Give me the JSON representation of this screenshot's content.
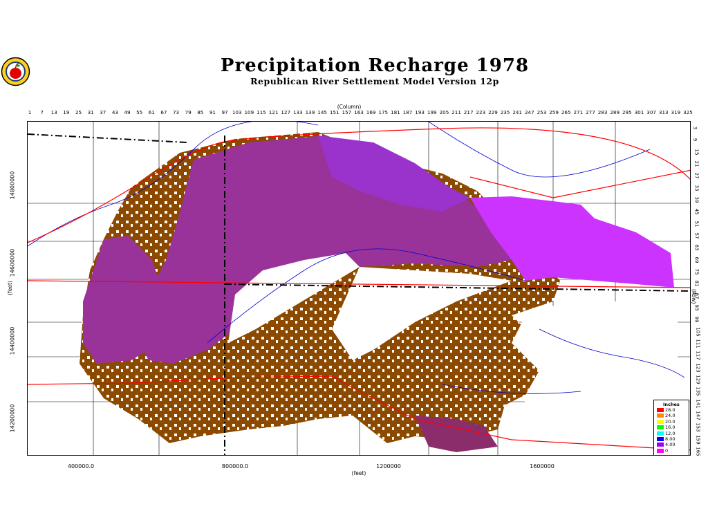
{
  "title": "Precipitation Recharge 1978",
  "subtitle": "Republican River Settlement Model Version 12p",
  "logo": {
    "icon": "apple-seal-icon"
  },
  "axes": {
    "column_title": "(Column)",
    "column_ticks": [
      "1",
      "7",
      "13",
      "19",
      "25",
      "31",
      "37",
      "43",
      "49",
      "55",
      "61",
      "67",
      "73",
      "79",
      "85",
      "91",
      "97",
      "103",
      "109",
      "115",
      "121",
      "127",
      "133",
      "139",
      "145",
      "151",
      "157",
      "163",
      "169",
      "175",
      "181",
      "187",
      "193",
      "199",
      "205",
      "211",
      "217",
      "223",
      "229",
      "235",
      "241",
      "247",
      "253",
      "259",
      "265",
      "271",
      "277",
      "283",
      "289",
      "295",
      "301",
      "307",
      "313",
      "319",
      "325"
    ],
    "row_title": "(Row)",
    "row_ticks": [
      "3",
      "9",
      "15",
      "21",
      "27",
      "33",
      "39",
      "45",
      "51",
      "57",
      "63",
      "69",
      "75",
      "81",
      "87",
      "93",
      "99",
      "105",
      "111",
      "117",
      "123",
      "129",
      "135",
      "141",
      "147",
      "153",
      "159",
      "165"
    ],
    "y_title": "(feet)",
    "y_ticks": [
      "14800000",
      "14600000",
      "14400000",
      "14200000"
    ],
    "x_title": "(feet)",
    "x_ticks": [
      "400000.0",
      "800000.0",
      "1200000",
      "1600000"
    ]
  },
  "legend": {
    "title": "Inches",
    "items": [
      {
        "label": "28.0",
        "color": "#ff0000"
      },
      {
        "label": "24.0",
        "color": "#ff8c00"
      },
      {
        "label": "20.0",
        "color": "#ffff00"
      },
      {
        "label": "16.0",
        "color": "#00ff00"
      },
      {
        "label": "12.0",
        "color": "#00ffff"
      },
      {
        "label": "8.00",
        "color": "#0000ff"
      },
      {
        "label": "4.00",
        "color": "#9900ff"
      },
      {
        "label": "0",
        "color": "#ff00ff"
      }
    ]
  },
  "colors": {
    "brown": "#8b4a00",
    "purple_dark": "#993399",
    "purple_mid": "#9933cc",
    "magenta": "#cc33ff",
    "plum": "#8b2d6b",
    "roads": "#ff0000",
    "rivers": "#0000cc",
    "boundaries": "#000000"
  }
}
